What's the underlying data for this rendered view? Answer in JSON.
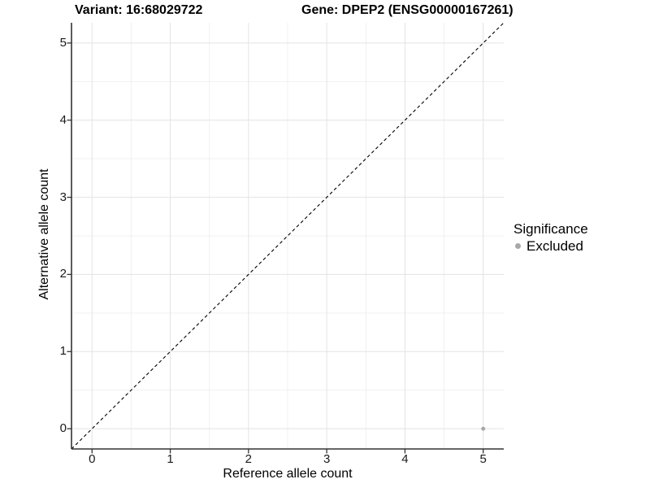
{
  "chart_data": {
    "type": "scatter",
    "title_left": "Variant: 16:68029722",
    "title_right": "Gene: DPEP2 (ENSG00000167261)",
    "xlabel": "Reference allele count",
    "ylabel": "Alternative allele count",
    "xlim": [
      -0.2625,
      5.2625
    ],
    "ylim": [
      -0.2625,
      5.2625
    ],
    "xticks": [
      0,
      1,
      2,
      3,
      4,
      5
    ],
    "yticks": [
      0,
      1,
      2,
      3,
      4,
      5
    ],
    "xminor": [
      0.5,
      1.5,
      2.5,
      3.5,
      4.5
    ],
    "yminor": [
      0.5,
      1.5,
      2.5,
      3.5,
      4.5
    ],
    "grid": "major+minor",
    "reference_line": {
      "kind": "identity y=x",
      "style": "dashed",
      "color": "#000000"
    },
    "series": [
      {
        "name": "Excluded",
        "color": "#a8a8a8",
        "points": [
          {
            "x": 5,
            "y": 0
          }
        ]
      }
    ],
    "legend": {
      "title": "Significance",
      "position": "right",
      "entries": [
        {
          "label": "Excluded",
          "color": "#a8a8a8"
        }
      ]
    },
    "colors": {
      "background": "#ffffff",
      "grid_major": "#e3e3e3",
      "grid_minor": "#f0f0f0",
      "axis_line": "#333333",
      "tick_text": "#1a1a1a",
      "title_text": "#000000",
      "point": "#a8a8a8"
    }
  }
}
